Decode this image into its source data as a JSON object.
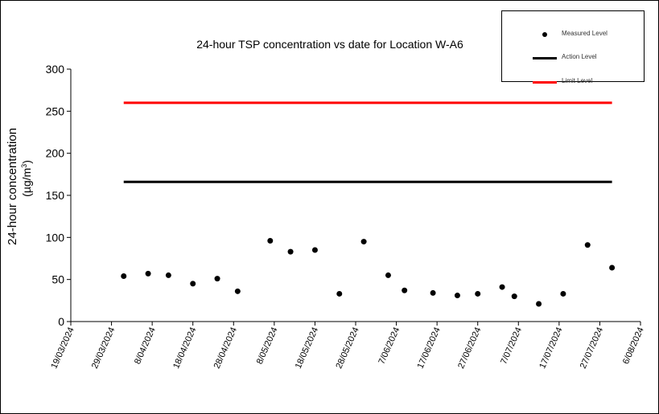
{
  "chart_data": {
    "type": "scatter",
    "title": "24-hour TSP concentration vs date for Location W-A6",
    "ylabel_line1": "24-hour concentration",
    "ylabel_line2_prefix": "(µg/m",
    "ylabel_line2_sup": "3",
    "ylabel_line2_suffix": ")",
    "ylim": [
      0,
      300
    ],
    "yticks": [
      0,
      50,
      100,
      150,
      200,
      250,
      300
    ],
    "xlim": [
      "2024-03-19",
      "2024-08-06"
    ],
    "xtick_labels": [
      "19/03/2024",
      "29/03/2024",
      "8/04/2024",
      "18/04/2024",
      "28/04/2024",
      "8/05/2024",
      "18/05/2024",
      "28/05/2024",
      "7/06/2024",
      "17/06/2024",
      "27/06/2024",
      "7/07/2024",
      "17/07/2024",
      "27/07/2024",
      "6/08/2024"
    ],
    "xtick_dates": [
      "2024-03-19",
      "2024-03-29",
      "2024-04-08",
      "2024-04-18",
      "2024-04-28",
      "2024-05-08",
      "2024-05-18",
      "2024-05-28",
      "2024-06-07",
      "2024-06-17",
      "2024-06-27",
      "2024-07-07",
      "2024-07-17",
      "2024-07-27",
      "2024-08-06"
    ],
    "grid": false,
    "legend_position": "top-right",
    "series": [
      {
        "name": "Measured Level",
        "style": "markers",
        "color": "#000000",
        "points": [
          {
            "x": "2024-04-01",
            "y": 54
          },
          {
            "x": "2024-04-07",
            "y": 57
          },
          {
            "x": "2024-04-12",
            "y": 55
          },
          {
            "x": "2024-04-18",
            "y": 45
          },
          {
            "x": "2024-04-24",
            "y": 51
          },
          {
            "x": "2024-04-29",
            "y": 36
          },
          {
            "x": "2024-05-07",
            "y": 96
          },
          {
            "x": "2024-05-12",
            "y": 83
          },
          {
            "x": "2024-05-18",
            "y": 85
          },
          {
            "x": "2024-05-24",
            "y": 33
          },
          {
            "x": "2024-05-30",
            "y": 95
          },
          {
            "x": "2024-06-05",
            "y": 55
          },
          {
            "x": "2024-06-09",
            "y": 37
          },
          {
            "x": "2024-06-16",
            "y": 34
          },
          {
            "x": "2024-06-22",
            "y": 31
          },
          {
            "x": "2024-06-27",
            "y": 33
          },
          {
            "x": "2024-07-03",
            "y": 41
          },
          {
            "x": "2024-07-06",
            "y": 30
          },
          {
            "x": "2024-07-12",
            "y": 21
          },
          {
            "x": "2024-07-18",
            "y": 33
          },
          {
            "x": "2024-07-24",
            "y": 91
          },
          {
            "x": "2024-07-30",
            "y": 64
          }
        ]
      },
      {
        "name": "Action Level",
        "style": "line",
        "color": "#000000",
        "points": [
          {
            "x": "2024-04-01",
            "y": 166
          },
          {
            "x": "2024-07-30",
            "y": 166
          }
        ]
      },
      {
        "name": "Limit Level",
        "style": "line",
        "color": "#ff0000",
        "points": [
          {
            "x": "2024-04-01",
            "y": 260
          },
          {
            "x": "2024-07-30",
            "y": 260
          }
        ]
      }
    ]
  }
}
